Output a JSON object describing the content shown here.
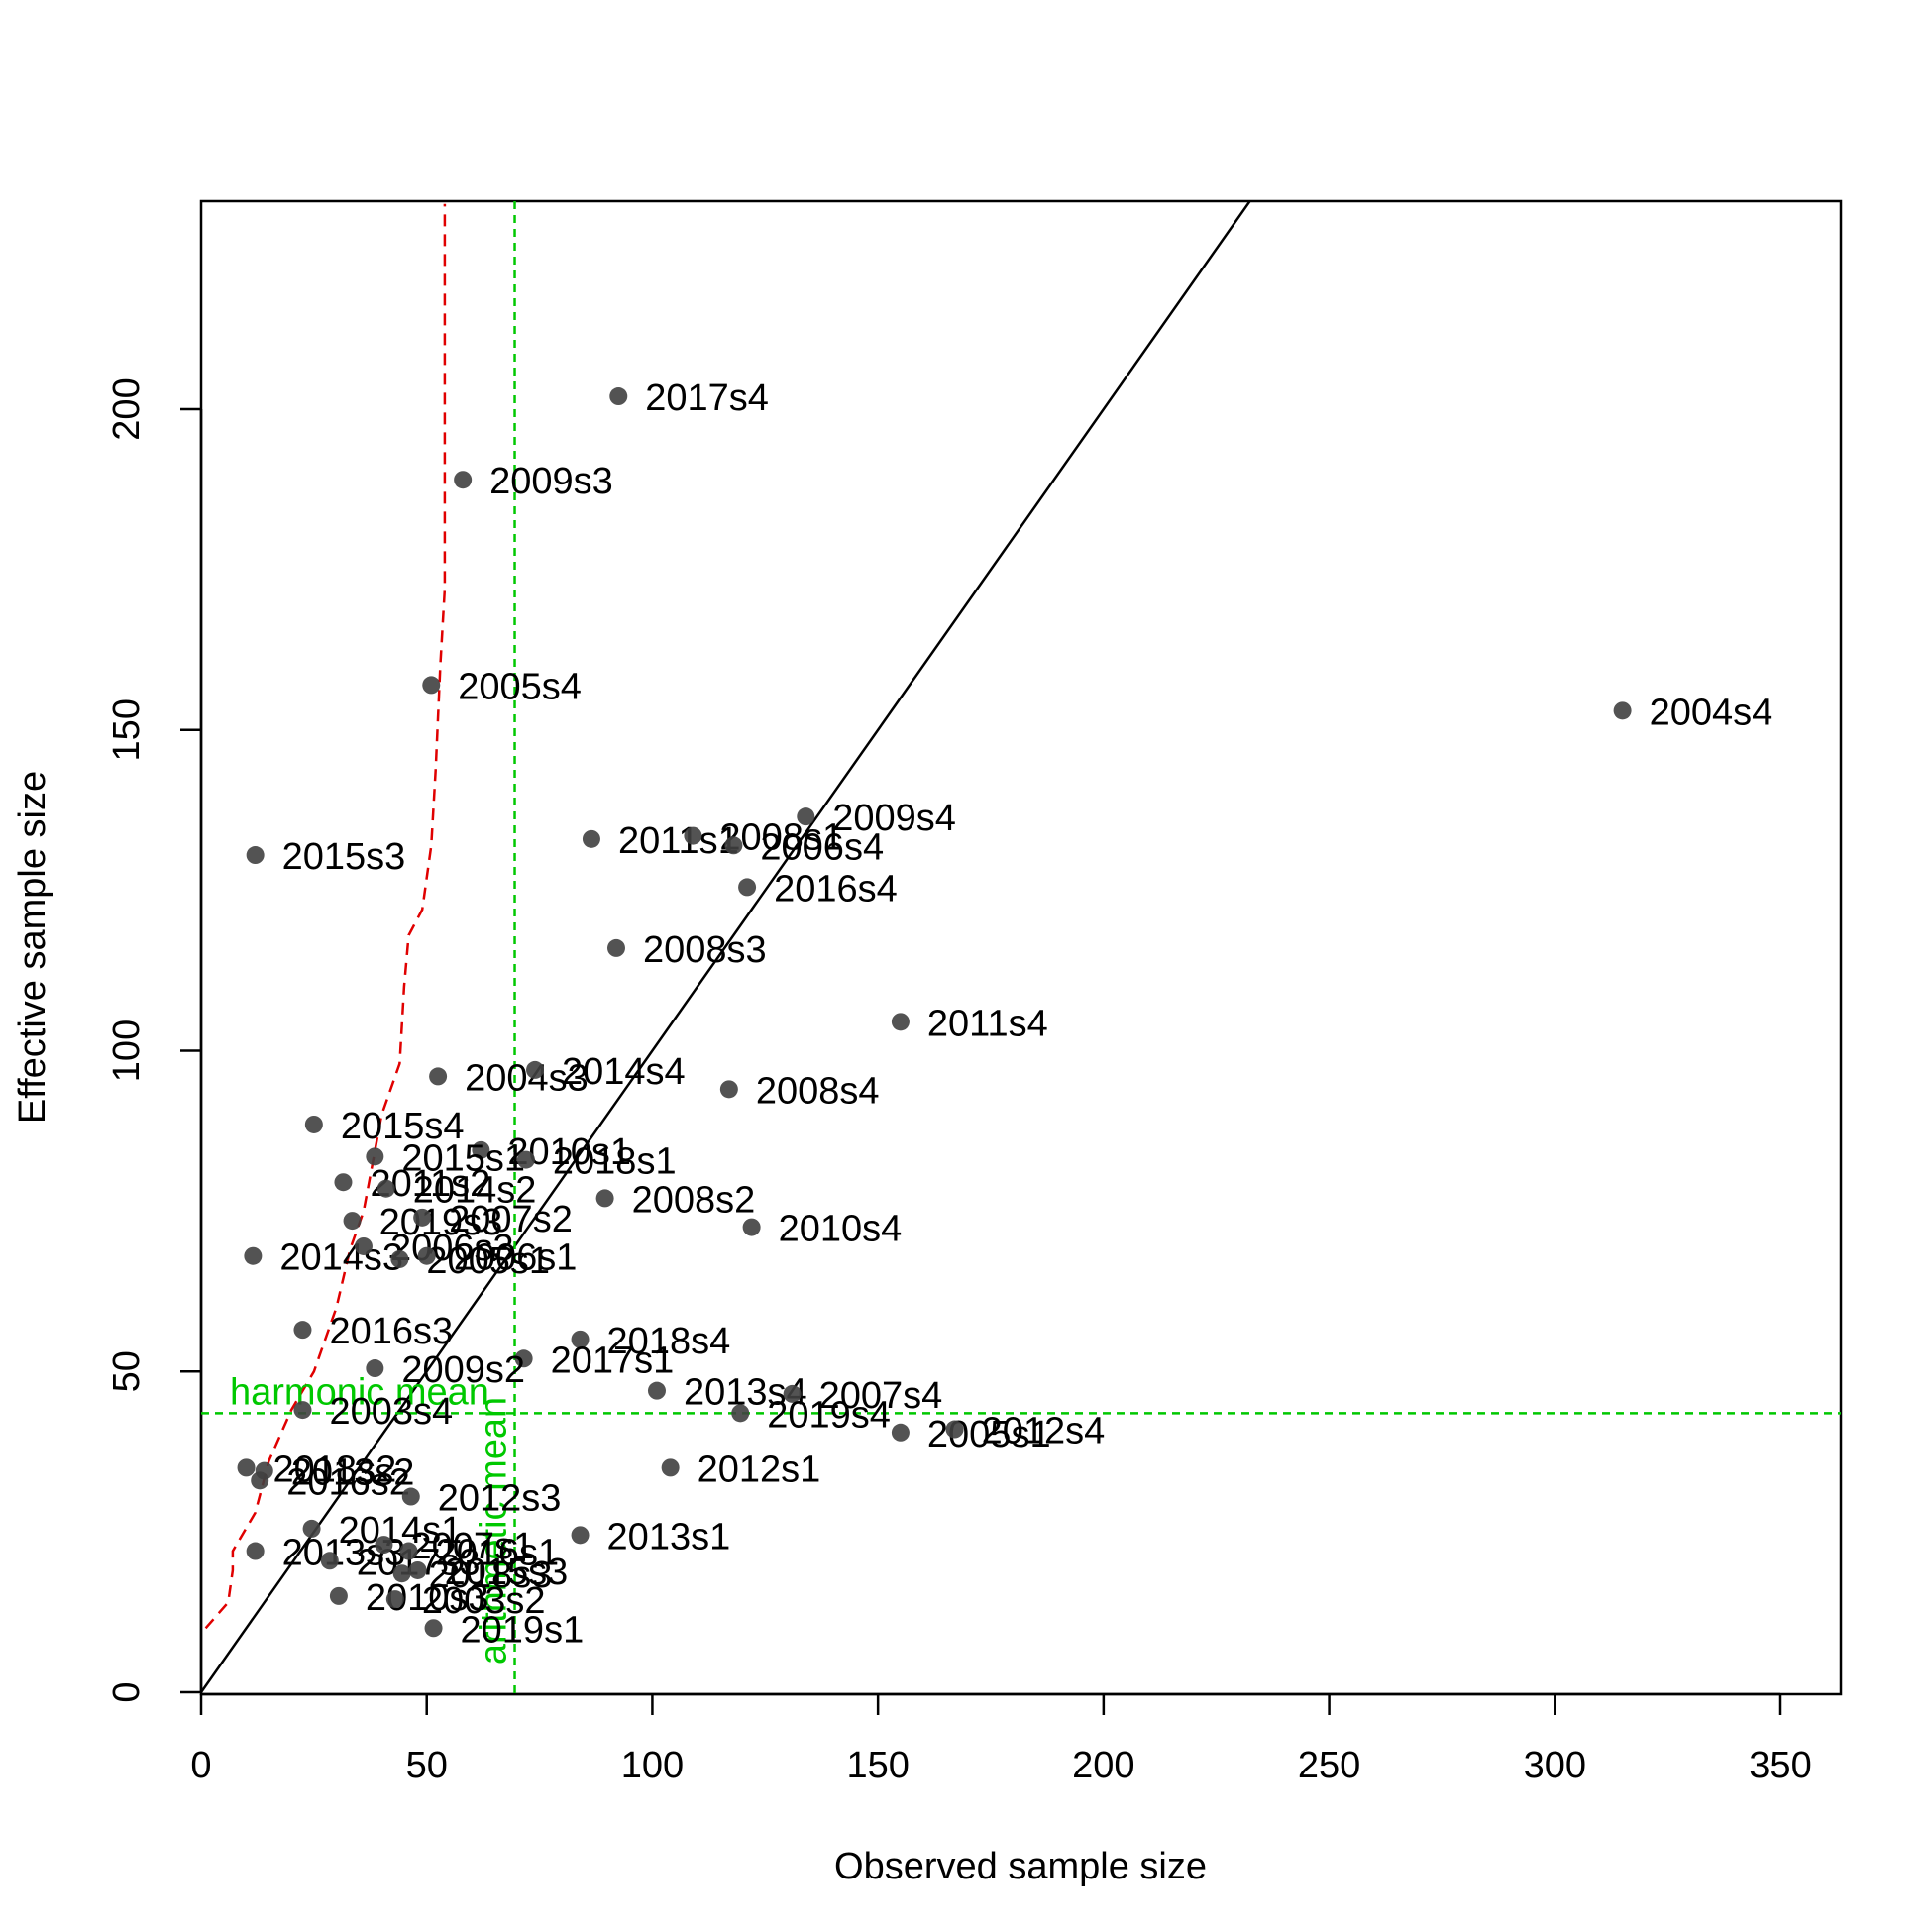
{
  "chart_data": {
    "type": "scatter",
    "xlabel": "Observed sample size",
    "ylabel": "Effective sample size",
    "xlim": [
      0,
      362
    ],
    "ylim": [
      0,
      233
    ],
    "xticks": [
      0,
      50,
      100,
      150,
      200,
      250,
      300,
      350
    ],
    "yticks": [
      0,
      50,
      100,
      150,
      200
    ],
    "grid": false,
    "point_color": "#404040",
    "identity_line_color": "#000000",
    "ref_color": "#00c800",
    "smooth_color": "#e00000",
    "harmonic_mean": {
      "label": "harmonic mean",
      "value": 43.5
    },
    "arithmetic_mean": {
      "label": "arithmetic mean",
      "value": 69.5
    },
    "smooth_line": [
      [
        1,
        10
      ],
      [
        6,
        14
      ],
      [
        7,
        19
      ],
      [
        7,
        22
      ],
      [
        12,
        28
      ],
      [
        15,
        36
      ],
      [
        20,
        44
      ],
      [
        25,
        50
      ],
      [
        30,
        60
      ],
      [
        33,
        69
      ],
      [
        36,
        75
      ],
      [
        40,
        90
      ],
      [
        44,
        98
      ],
      [
        45,
        110
      ],
      [
        46,
        118
      ],
      [
        49,
        122
      ],
      [
        51,
        132
      ],
      [
        52,
        144
      ],
      [
        53,
        160
      ],
      [
        54,
        172
      ],
      [
        54,
        232
      ]
    ],
    "points": [
      {
        "label": "2017s4",
        "x": 92.5,
        "y": 202
      },
      {
        "label": "2009s3",
        "x": 58,
        "y": 189
      },
      {
        "label": "2005s4",
        "x": 51,
        "y": 157
      },
      {
        "label": "2004s4",
        "x": 315,
        "y": 153
      },
      {
        "label": "2009s4",
        "x": 134,
        "y": 136.5
      },
      {
        "label": "2011s1",
        "x": 86.5,
        "y": 133
      },
      {
        "label": "2008s1",
        "x": 109,
        "y": 133.5
      },
      {
        "label": "2006s4",
        "x": 118,
        "y": 132
      },
      {
        "label": "2015s3",
        "x": 12,
        "y": 130.5
      },
      {
        "label": "2016s4",
        "x": 121,
        "y": 125.5
      },
      {
        "label": "2008s3",
        "x": 92,
        "y": 116
      },
      {
        "label": "2011s4",
        "x": 155,
        "y": 104.5
      },
      {
        "label": "2004s3",
        "x": 52.5,
        "y": 96
      },
      {
        "label": "2014s4",
        "x": 74,
        "y": 97
      },
      {
        "label": "2008s4",
        "x": 117,
        "y": 94
      },
      {
        "label": "2015s4",
        "x": 25,
        "y": 88.5
      },
      {
        "label": "2010s1",
        "x": 62,
        "y": 84.5
      },
      {
        "label": "2015s1",
        "x": 38.5,
        "y": 83.5
      },
      {
        "label": "2018s1",
        "x": 72,
        "y": 83
      },
      {
        "label": "2011s2",
        "x": 31.5,
        "y": 79.5
      },
      {
        "label": "2014s2",
        "x": 41,
        "y": 78.5
      },
      {
        "label": "2008s2",
        "x": 89.5,
        "y": 77
      },
      {
        "label": "2019s3",
        "x": 33.5,
        "y": 73.5
      },
      {
        "label": "2007s2",
        "x": 49,
        "y": 74
      },
      {
        "label": "2010s4",
        "x": 122,
        "y": 72.5
      },
      {
        "label": "2014s3",
        "x": 11.5,
        "y": 68
      },
      {
        "label": "2006s3",
        "x": 36,
        "y": 69.5
      },
      {
        "label": "2005s1",
        "x": 44,
        "y": 67.5
      },
      {
        "label": "2006s1",
        "x": 50,
        "y": 68
      },
      {
        "label": "2016s3",
        "x": 22.5,
        "y": 56.5
      },
      {
        "label": "2018s4",
        "x": 84,
        "y": 55
      },
      {
        "label": "2017s1",
        "x": 71.5,
        "y": 52
      },
      {
        "label": "2009s2",
        "x": 38.5,
        "y": 50.5
      },
      {
        "label": "2013s4",
        "x": 101,
        "y": 47
      },
      {
        "label": "2007s4",
        "x": 131,
        "y": 46.5
      },
      {
        "label": "2003s4",
        "x": 22.5,
        "y": 44
      },
      {
        "label": "2019s4",
        "x": 119.5,
        "y": 43.5
      },
      {
        "label": "2005s1",
        "x": 155,
        "y": 40.5
      },
      {
        "label": "2012s4",
        "x": 167,
        "y": 41
      },
      {
        "label": "2012s1",
        "x": 104,
        "y": 35
      },
      {
        "label": "2018s2",
        "x": 10,
        "y": 35
      },
      {
        "label": "2013s2",
        "x": 14,
        "y": 34.5
      },
      {
        "label": "2016s2",
        "x": 13,
        "y": 33
      },
      {
        "label": "2012s3",
        "x": 46.5,
        "y": 30.5
      },
      {
        "label": "2014s1",
        "x": 24.5,
        "y": 25.5
      },
      {
        "label": "2013s1",
        "x": 84,
        "y": 24.5
      },
      {
        "label": "2013s3",
        "x": 12,
        "y": 22
      },
      {
        "label": "2017s3",
        "x": 28.5,
        "y": 20.5
      },
      {
        "label": "2007s1",
        "x": 40.5,
        "y": 23
      },
      {
        "label": "2018s3",
        "x": 44.5,
        "y": 18.5
      },
      {
        "label": "2016s1",
        "x": 46,
        "y": 22
      },
      {
        "label": "2015s3",
        "x": 48,
        "y": 19
      },
      {
        "label": "2010s3",
        "x": 30.5,
        "y": 15
      },
      {
        "label": "2003s2",
        "x": 43,
        "y": 14.5
      },
      {
        "label": "2019s1",
        "x": 51.5,
        "y": 10
      }
    ]
  }
}
